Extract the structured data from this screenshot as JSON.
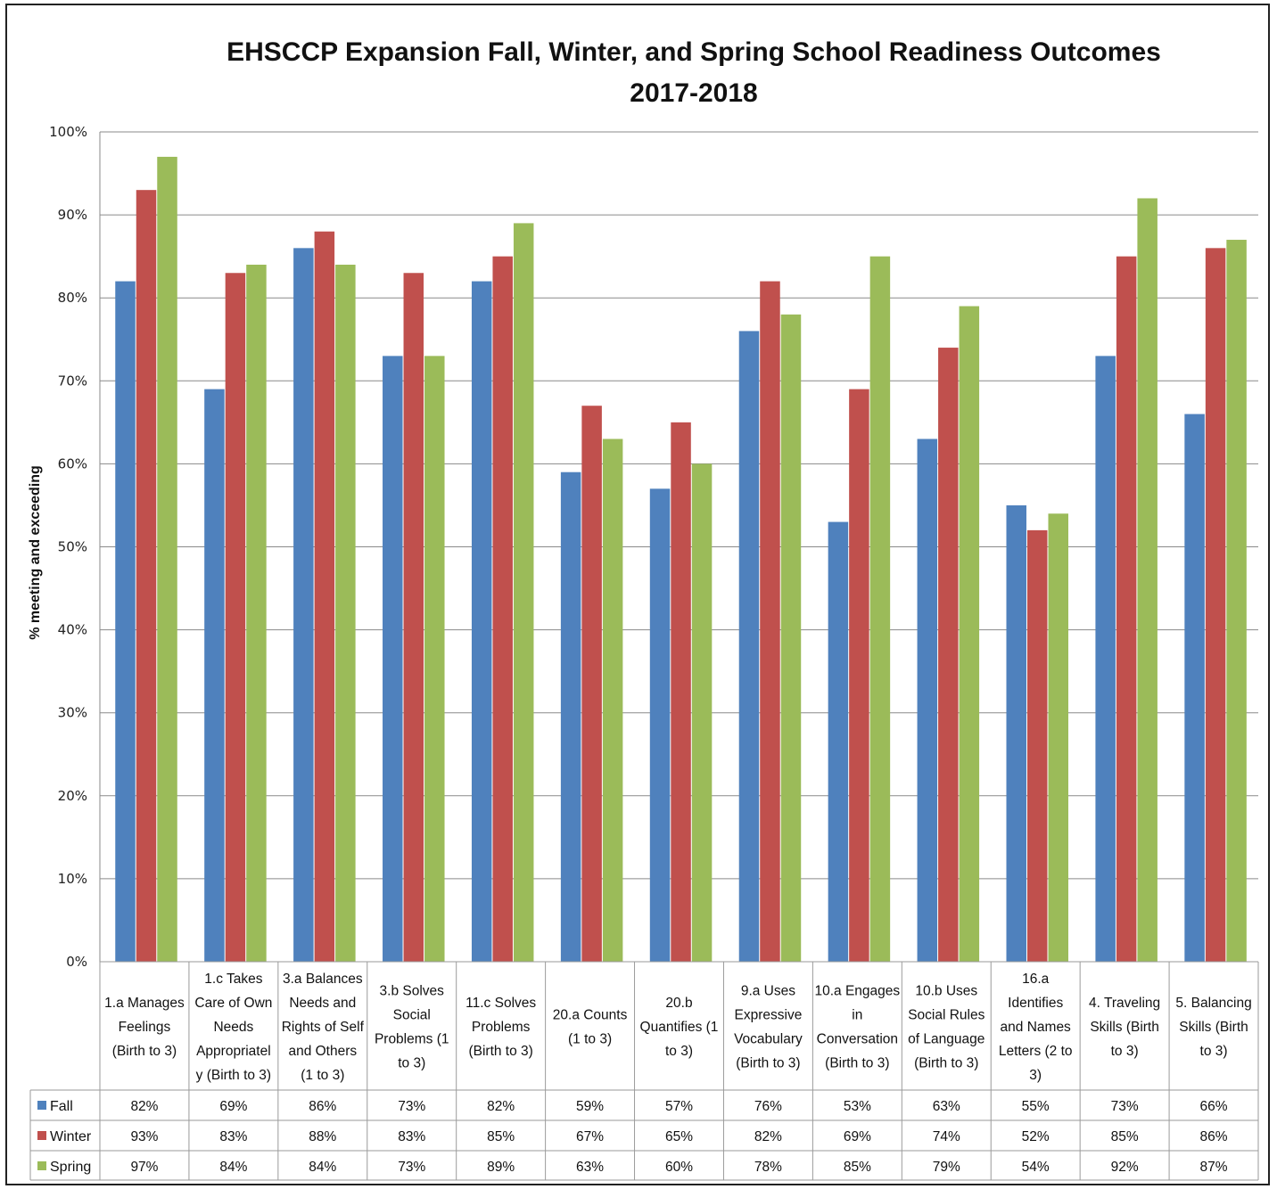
{
  "chart_data": {
    "type": "bar",
    "title": "EHSCCP Expansion Fall, Winter, and Spring School Readiness Outcomes",
    "subtitle": "2017-2018",
    "ylabel": "% meeting and exceeding",
    "ylim": [
      0,
      100
    ],
    "yticks": [
      "0%",
      "10%",
      "20%",
      "30%",
      "40%",
      "50%",
      "60%",
      "70%",
      "80%",
      "90%",
      "100%"
    ],
    "grid": true,
    "legend_placement": "data-table-left",
    "categories": [
      [
        "1.a Manages",
        "Feelings",
        "(Birth to 3)"
      ],
      [
        "1.c Takes",
        "Care of Own",
        "Needs",
        "Appropriatel",
        "y (Birth to 3)"
      ],
      [
        "3.a Balances",
        "Needs and",
        "Rights of Self",
        "and Others",
        "(1 to 3)"
      ],
      [
        "3.b Solves",
        "Social",
        "Problems (1",
        "to 3)"
      ],
      [
        "11.c Solves",
        "Problems",
        "(Birth to 3)"
      ],
      [
        "20.a Counts",
        "(1 to 3)"
      ],
      [
        "20.b",
        "Quantifies (1",
        "to 3)"
      ],
      [
        "9.a Uses",
        "Expressive",
        "Vocabulary",
        "(Birth to 3)"
      ],
      [
        "10.a Engages",
        "in",
        "Conversation",
        "(Birth to 3)"
      ],
      [
        "10.b Uses",
        "Social Rules",
        "of Language",
        "(Birth to 3)"
      ],
      [
        "16.a",
        "Identifies",
        "and Names",
        "Letters (2 to",
        "3)"
      ],
      [
        "4. Traveling",
        "Skills (Birth",
        "to 3)"
      ],
      [
        "5. Balancing",
        "Skills (Birth",
        "to 3)"
      ]
    ],
    "series": [
      {
        "name": "Fall",
        "color": "#4F81BD",
        "values": [
          82,
          69,
          86,
          73,
          82,
          59,
          57,
          76,
          53,
          63,
          55,
          73,
          66
        ],
        "labels": [
          "82%",
          "69%",
          "86%",
          "73%",
          "82%",
          "59%",
          "57%",
          "76%",
          "53%",
          "63%",
          "55%",
          "73%",
          "66%"
        ]
      },
      {
        "name": "Winter",
        "color": "#C0504D",
        "values": [
          93,
          83,
          88,
          83,
          85,
          67,
          65,
          82,
          69,
          74,
          52,
          85,
          86
        ],
        "labels": [
          "93%",
          "83%",
          "88%",
          "83%",
          "85%",
          "67%",
          "65%",
          "82%",
          "69%",
          "74%",
          "52%",
          "85%",
          "86%"
        ]
      },
      {
        "name": "Spring",
        "color": "#9BBB59",
        "values": [
          97,
          84,
          84,
          73,
          89,
          63,
          60,
          78,
          85,
          79,
          54,
          92,
          87
        ],
        "labels": [
          "97%",
          "84%",
          "84%",
          "73%",
          "89%",
          "63%",
          "60%",
          "78%",
          "85%",
          "79%",
          "54%",
          "92%",
          "87%"
        ]
      }
    ]
  }
}
